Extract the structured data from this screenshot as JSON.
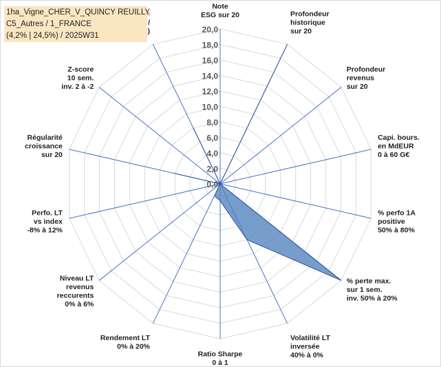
{
  "header": {
    "line1": "1ha_Vigne_CHER_V_QUINCY REUILLY",
    "line2": "C5_Autres / 1_FRANCE",
    "line3": "(4,2% | 24,5%) / 2025W31"
  },
  "colors": {
    "grid": "#d9d9d9",
    "spoke": "#4472c4",
    "fill": "#4f81bd",
    "fill_opacity": 0.78,
    "stroke": "#2f5597"
  },
  "chart_data": {
    "type": "radar",
    "title": "",
    "rmin": 0,
    "rmax": 20,
    "tick_step": 2,
    "tick_labels": [
      "0,0",
      "2,0",
      "4,0",
      "6,0",
      "8,0",
      "10,0",
      "12,0",
      "14,0",
      "16,0",
      "18,0",
      "20,0"
    ],
    "grid": true,
    "axes": [
      {
        "label": "Note\nESG sur 20",
        "value": 0
      },
      {
        "label": "Profondeur\nhistorique\nsur 20",
        "value": 20
      },
      {
        "label": "Profondeur\nrevenus\nsur 20",
        "value": 0
      },
      {
        "label": "Capi. bours.\nen MdEUR\n0 à 60 G€",
        "value": 0
      },
      {
        "label": "% perfo 1A\npositive\n50% à 80%",
        "value": 0
      },
      {
        "label": "% perte max.\nsur 1 sem.\ninv. 50% à 20%",
        "value": 20
      },
      {
        "label": "Volatilité LT\ninversée\n40% à 0%",
        "value": 8
      },
      {
        "label": "Ratio Sharpe\n0 à 1",
        "value": 2.2
      },
      {
        "label": "Rendement LT\n0% à 20%",
        "value": 1.7
      },
      {
        "label": "Niveau LT\nrevenus\nreccurents\n0% à 6%",
        "value": 0
      },
      {
        "label": "Perfo. LT\nvs index\n-8% à 12%",
        "value": 0
      },
      {
        "label": "Régularité\ncroissance\nsur 20",
        "value": 6.1
      },
      {
        "label": "Z-score\n10 sem.\ninv. 2 à -2",
        "value": 0
      },
      {
        "label": "Momentum\nAchat (20) /\nVente (0)",
        "value": 8
      }
    ]
  }
}
